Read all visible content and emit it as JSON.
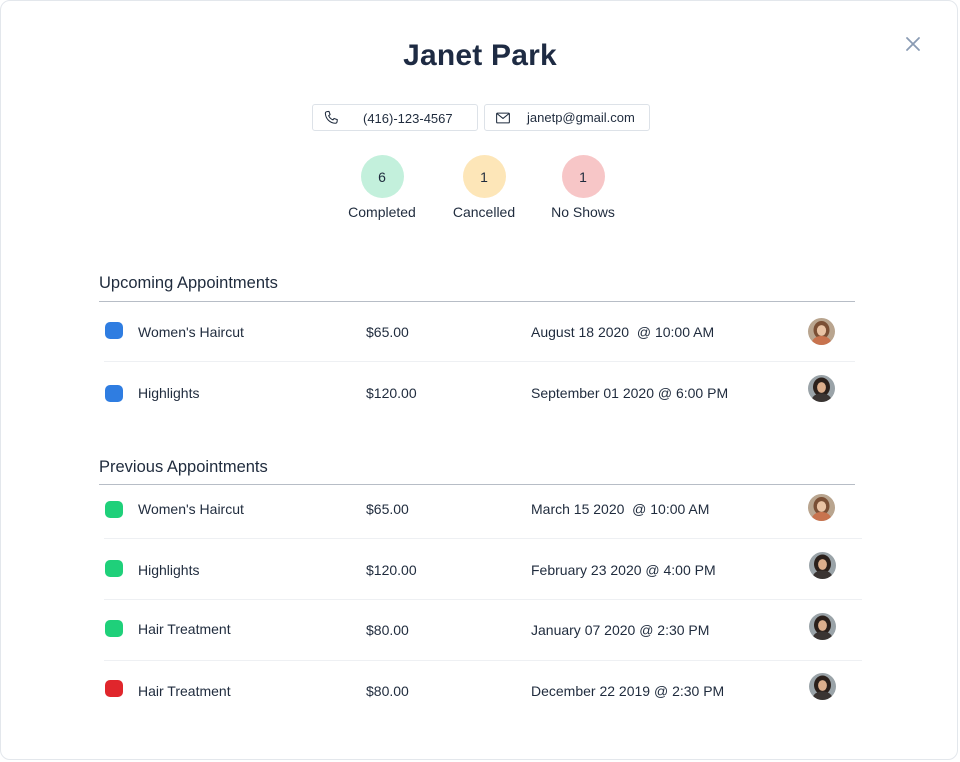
{
  "client": {
    "name": "Janet Park",
    "phone": "(416)-123-4567",
    "email": "janetp@gmail.com"
  },
  "stats": [
    {
      "count": "6",
      "label": "Completed",
      "color": "#c3f0dc"
    },
    {
      "count": "1",
      "label": "Cancelled",
      "color": "#fde6b8"
    },
    {
      "count": "1",
      "label": "No Shows",
      "color": "#f7c6c7"
    }
  ],
  "upcoming": {
    "title": "Upcoming Appointments",
    "rows": [
      {
        "service": "Women's Haircut",
        "price": "$65.00",
        "when": "August 18 2020  @ 10:00 AM",
        "status_color": "#2f7de1",
        "avatar": "stylist-avatar-a"
      },
      {
        "service": "Highlights",
        "price": "$120.00",
        "when": "September 01 2020 @ 6:00 PM",
        "status_color": "#2f7de1",
        "avatar": "stylist-avatar-b"
      }
    ]
  },
  "previous": {
    "title": "Previous Appointments",
    "rows": [
      {
        "service": "Women's Haircut",
        "price": "$65.00",
        "when": "March 15 2020  @ 10:00 AM",
        "status_color": "#1fd07a",
        "avatar": "stylist-avatar-a"
      },
      {
        "service": "Highlights",
        "price": "$120.00",
        "when": "February 23 2020 @ 4:00 PM",
        "status_color": "#1fd07a",
        "avatar": "stylist-avatar-b"
      },
      {
        "service": "Hair Treatment",
        "price": "$80.00",
        "when": "January 07 2020 @ 2:30 PM",
        "status_color": "#1fd07a",
        "avatar": "stylist-avatar-b"
      },
      {
        "service": "Hair Treatment",
        "price": "$80.00",
        "when": "December 22 2019 @ 2:30 PM",
        "status_color": "#e0262c",
        "avatar": "stylist-avatar-b"
      }
    ]
  },
  "icons": {
    "close": "close-icon",
    "phone": "phone-icon",
    "email": "mail-icon"
  }
}
